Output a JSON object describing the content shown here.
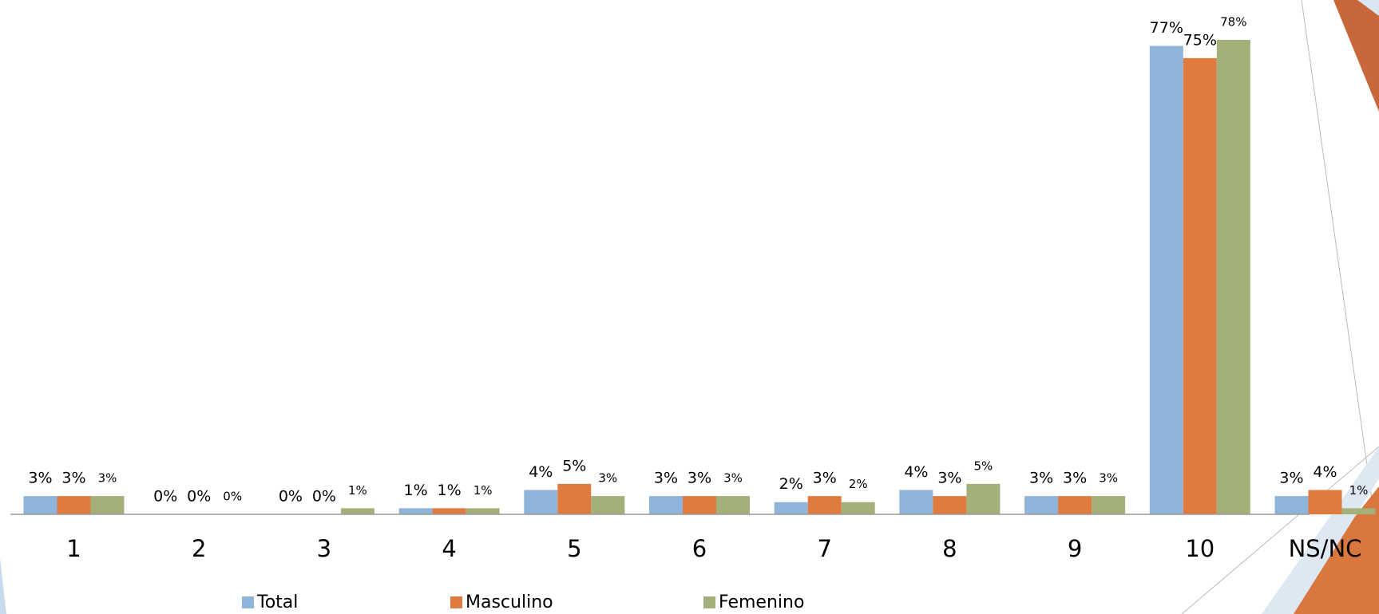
{
  "chart_data": {
    "type": "bar",
    "categories": [
      "1",
      "2",
      "3",
      "4",
      "5",
      "6",
      "7",
      "8",
      "9",
      "10",
      "NS/NC"
    ],
    "series": [
      {
        "name": "Total",
        "color": "#8fb4d9",
        "values": [
          3,
          0,
          0,
          1,
          4,
          3,
          2,
          4,
          3,
          77,
          3
        ],
        "value_labels": [
          "3%",
          "0%",
          "0%",
          "1%",
          "4%",
          "3%",
          "2%",
          "4%",
          "3%",
          "77%",
          "3%"
        ]
      },
      {
        "name": "Masculino",
        "color": "#e07b3f",
        "values": [
          3,
          0,
          0,
          1,
          5,
          3,
          3,
          3,
          3,
          75,
          4
        ],
        "value_labels": [
          "3%",
          "0%",
          "0%",
          "1%",
          "5%",
          "3%",
          "3%",
          "3%",
          "3%",
          "75%",
          "4%"
        ]
      },
      {
        "name": "Femenino",
        "color": "#a3b07a",
        "values": [
          3,
          0,
          1,
          1,
          3,
          3,
          2,
          5,
          3,
          78,
          1
        ],
        "value_labels": [
          "3%",
          "0%",
          "1%",
          "1%",
          "3%",
          "3%",
          "2%",
          "5%",
          "3%",
          "78%",
          "1%"
        ]
      }
    ],
    "legend": "bottom"
  }
}
